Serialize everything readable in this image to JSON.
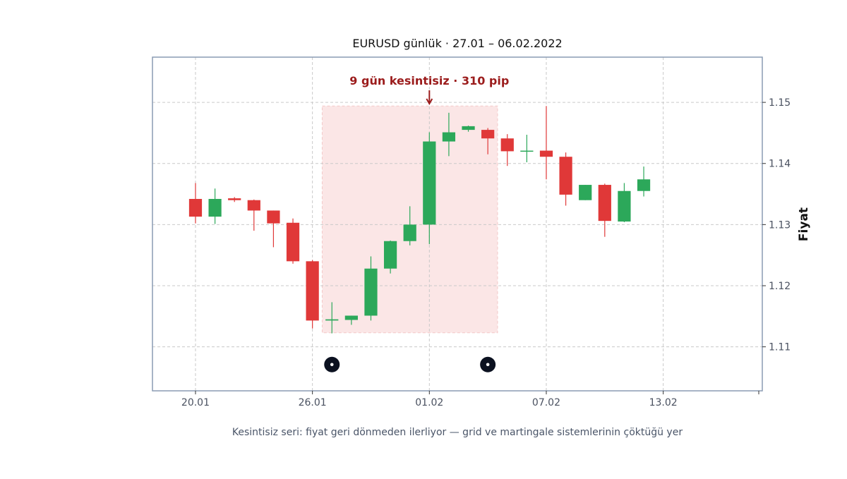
{
  "chart_data": {
    "type": "candlestick",
    "title": "EURUSD günlük · 27.01 – 06.02.2022",
    "ylabel": "Fiyat",
    "xlabel": "",
    "caption": "Kesintisiz seri: fiyat geri dönmeden ilerliyor — grid ve martingale sistemlerinin çöktüğü yer",
    "ylim": [
      1.1028,
      1.1574
    ],
    "xlim": [
      "2022-01-17 19:00",
      "2022-02-18 02:00"
    ],
    "grid": true,
    "y_ticks": [
      1.11,
      1.12,
      1.13,
      1.14,
      1.15
    ],
    "y_tick_labels": [
      "1.11",
      "1.12",
      "1.13",
      "1.14",
      "1.15"
    ],
    "x_ticks": [
      "2022-01-20",
      "2022-01-26",
      "2022-02-01",
      "2022-02-07",
      "2022-02-13"
    ],
    "x_tick_labels": [
      "20.01",
      "26.01",
      "01.02",
      "07.02",
      "13.02"
    ],
    "up_color": "#2ca85a",
    "down_color": "#e03838",
    "candles": [
      {
        "date": "2022-01-20",
        "open": 1.1342,
        "high": 1.1368,
        "low": 1.1302,
        "close": 1.1313
      },
      {
        "date": "2022-01-21",
        "open": 1.1313,
        "high": 1.1359,
        "low": 1.1301,
        "close": 1.1342
      },
      {
        "date": "2022-01-22",
        "open": 1.1343,
        "high": 1.1345,
        "low": 1.1337,
        "close": 1.134
      },
      {
        "date": "2022-01-23",
        "open": 1.134,
        "high": 1.1341,
        "low": 1.129,
        "close": 1.1323
      },
      {
        "date": "2022-01-24",
        "open": 1.1323,
        "high": 1.1323,
        "low": 1.1263,
        "close": 1.1302
      },
      {
        "date": "2022-01-25",
        "open": 1.1303,
        "high": 1.131,
        "low": 1.1236,
        "close": 1.124
      },
      {
        "date": "2022-01-26",
        "open": 1.124,
        "high": 1.1242,
        "low": 1.113,
        "close": 1.1143
      },
      {
        "date": "2022-01-27",
        "open": 1.1143,
        "high": 1.1173,
        "low": 1.1122,
        "close": 1.1145
      },
      {
        "date": "2022-01-28",
        "open": 1.1144,
        "high": 1.1151,
        "low": 1.1136,
        "close": 1.1151
      },
      {
        "date": "2022-01-29",
        "open": 1.1151,
        "high": 1.1248,
        "low": 1.1143,
        "close": 1.1228
      },
      {
        "date": "2022-01-30",
        "open": 1.1228,
        "high": 1.1274,
        "low": 1.122,
        "close": 1.1273
      },
      {
        "date": "2022-01-31",
        "open": 1.1273,
        "high": 1.133,
        "low": 1.1266,
        "close": 1.13
      },
      {
        "date": "2022-02-01",
        "open": 1.13,
        "high": 1.1451,
        "low": 1.1268,
        "close": 1.1436
      },
      {
        "date": "2022-02-02",
        "open": 1.1436,
        "high": 1.1483,
        "low": 1.1412,
        "close": 1.1451
      },
      {
        "date": "2022-02-03",
        "open": 1.1455,
        "high": 1.1462,
        "low": 1.1452,
        "close": 1.1461
      },
      {
        "date": "2022-02-04",
        "open": 1.1455,
        "high": 1.1458,
        "low": 1.1415,
        "close": 1.1441
      },
      {
        "date": "2022-02-05",
        "open": 1.1441,
        "high": 1.1448,
        "low": 1.1396,
        "close": 1.142
      },
      {
        "date": "2022-02-06",
        "open": 1.1421,
        "high": 1.1447,
        "low": 1.1402,
        "close": 1.1421
      },
      {
        "date": "2022-02-07",
        "open": 1.1421,
        "high": 1.1494,
        "low": 1.1374,
        "close": 1.1411
      },
      {
        "date": "2022-02-08",
        "open": 1.1411,
        "high": 1.1418,
        "low": 1.1331,
        "close": 1.1349
      },
      {
        "date": "2022-02-09",
        "open": 1.134,
        "high": 1.1365,
        "low": 1.134,
        "close": 1.1365
      },
      {
        "date": "2022-02-10",
        "open": 1.1365,
        "high": 1.1367,
        "low": 1.128,
        "close": 1.1306
      },
      {
        "date": "2022-02-11",
        "open": 1.1305,
        "high": 1.1368,
        "low": 1.1304,
        "close": 1.1355
      },
      {
        "date": "2022-02-12",
        "open": 1.1355,
        "high": 1.1395,
        "low": 1.1346,
        "close": 1.1374
      }
    ],
    "highlight": {
      "x_start": "2022-01-26",
      "x_end": "2022-02-04",
      "y_low": 1.1123,
      "y_high": 1.1494,
      "fill": "#fbe6e6",
      "stroke": "#f3c9c9",
      "label": "9 gün kesintisiz · 310 pip",
      "label_color": "#9b1c1c",
      "arrow_x": "2022-02-01"
    },
    "markers": [
      {
        "date": "2022-01-27",
        "y": 1.1071
      },
      {
        "date": "2022-02-04",
        "y": 1.1071
      }
    ],
    "colors": {
      "frame": "#8a9bb3",
      "grid": "#c9c9c9",
      "tick_text": "#4a5160",
      "title": "#111111",
      "caption": "#4a5568",
      "marker": "#0b1120"
    }
  }
}
